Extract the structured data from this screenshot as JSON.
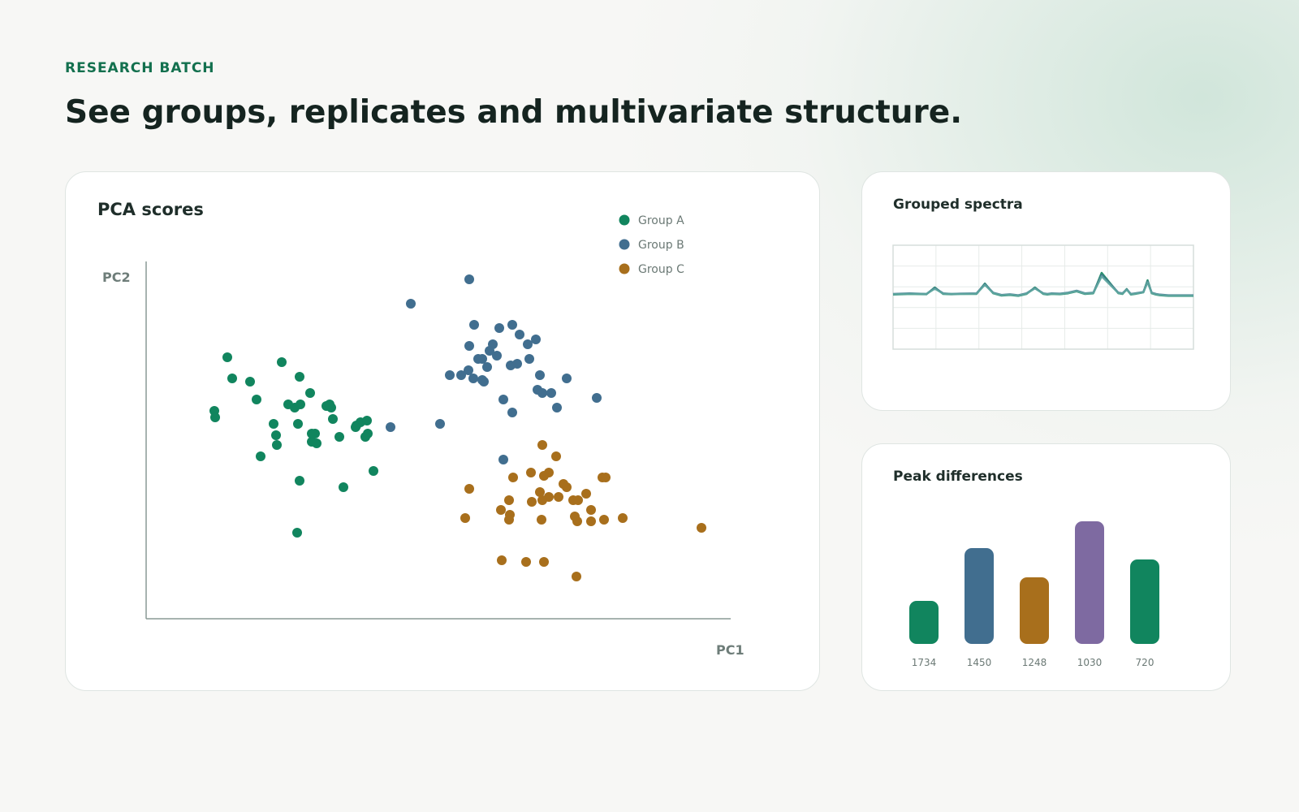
{
  "header": {
    "eyebrow": "RESEARCH BATCH",
    "title": "See groups, replicates and multivariate structure."
  },
  "colors": {
    "accent": "#13704e",
    "groupA": "#11855e",
    "groupB": "#416e8f",
    "groupC": "#a86f1c",
    "groupD": "#7e6aa1"
  },
  "chart_data": [
    {
      "type": "scatter",
      "title": "PCA scores",
      "xlabel": "PC1",
      "ylabel": "PC2",
      "xlim": [
        0,
        720
      ],
      "ylim": [
        0,
        440
      ],
      "legend": "top-right",
      "grid": false,
      "series": [
        {
          "name": "Group A",
          "color": "#11855e",
          "points": [
            [
              100,
              322
            ],
            [
              106,
              296
            ],
            [
              128,
              292
            ],
            [
              167,
              316
            ],
            [
              189,
              298
            ],
            [
              84,
              256
            ],
            [
              85,
              248
            ],
            [
              136,
              270
            ],
            [
              202,
              278
            ],
            [
              175,
              264
            ],
            [
              183,
              260
            ],
            [
              190,
              264
            ],
            [
              222,
              262
            ],
            [
              228,
              260
            ],
            [
              226,
              264
            ],
            [
              230,
              246
            ],
            [
              208,
              228
            ],
            [
              238,
              224
            ],
            [
              187,
              240
            ],
            [
              157,
              240
            ],
            [
              160,
              226
            ],
            [
              161,
              214
            ],
            [
              210,
              216
            ],
            [
              204,
              218
            ],
            [
              204,
              228
            ],
            [
              259,
              238
            ],
            [
              264,
              242
            ],
            [
              272,
              244
            ],
            [
              258,
              236
            ],
            [
              273,
              228
            ],
            [
              270,
              224
            ],
            [
              141,
              200
            ],
            [
              280,
              182
            ],
            [
              189,
              170
            ],
            [
              243,
              162
            ],
            [
              186,
              106
            ]
          ]
        },
        {
          "name": "Group B",
          "color": "#416e8f",
          "points": [
            [
              398,
              418
            ],
            [
              326,
              388
            ],
            [
              404,
              362
            ],
            [
              435,
              358
            ],
            [
              451,
              362
            ],
            [
              460,
              350
            ],
            [
              427,
              338
            ],
            [
              470,
              338
            ],
            [
              480,
              344
            ],
            [
              398,
              336
            ],
            [
              414,
              320
            ],
            [
              423,
              330
            ],
            [
              432,
              324
            ],
            [
              420,
              310
            ],
            [
              409,
              320
            ],
            [
              449,
              312
            ],
            [
              457,
              314
            ],
            [
              472,
              320
            ],
            [
              397,
              306
            ],
            [
              374,
              300
            ],
            [
              388,
              300
            ],
            [
              403,
              296
            ],
            [
              416,
              292
            ],
            [
              485,
              300
            ],
            [
              518,
              296
            ],
            [
              482,
              282
            ],
            [
              488,
              278
            ],
            [
              414,
              294
            ],
            [
              555,
              272
            ],
            [
              440,
              270
            ],
            [
              362,
              240
            ],
            [
              499,
              278
            ],
            [
              451,
              254
            ],
            [
              301,
              236
            ],
            [
              506,
              260
            ],
            [
              440,
              196
            ]
          ]
        },
        {
          "name": "Group C",
          "color": "#a86f1c",
          "points": [
            [
              488,
              214
            ],
            [
              505,
              200
            ],
            [
              496,
              180
            ],
            [
              452,
              174
            ],
            [
              474,
              180
            ],
            [
              490,
              176
            ],
            [
              514,
              166
            ],
            [
              562,
              174
            ],
            [
              566,
              174
            ],
            [
              398,
              160
            ],
            [
              485,
              156
            ],
            [
              496,
              150
            ],
            [
              518,
              162
            ],
            [
              542,
              154
            ],
            [
              508,
              150
            ],
            [
              526,
              146
            ],
            [
              532,
              146
            ],
            [
              488,
              146
            ],
            [
              475,
              144
            ],
            [
              447,
              146
            ],
            [
              437,
              134
            ],
            [
              448,
              128
            ],
            [
              487,
              122
            ],
            [
              548,
              134
            ],
            [
              531,
              120
            ],
            [
              548,
              120
            ],
            [
              528,
              126
            ],
            [
              564,
              122
            ],
            [
              587,
              124
            ],
            [
              393,
              124
            ],
            [
              447,
              122
            ],
            [
              684,
              112
            ],
            [
              438,
              72
            ],
            [
              468,
              70
            ],
            [
              490,
              70
            ],
            [
              530,
              52
            ]
          ]
        }
      ]
    },
    {
      "type": "line",
      "title": "Grouped spectra",
      "xlabel": "",
      "ylabel": "",
      "legend": "none",
      "grid": true,
      "x": [
        0,
        20,
        40,
        50,
        60,
        70,
        80,
        100,
        110,
        120,
        130,
        140,
        150,
        160,
        170,
        180,
        185,
        190,
        200,
        210,
        220,
        230,
        240,
        250,
        270,
        275,
        280,
        285,
        290,
        300,
        305,
        310,
        315,
        320,
        330,
        350,
        360
      ],
      "series": [
        {
          "color": "#11855e",
          "values": [
            0.08,
            0.1,
            0.09,
            0.3,
            0.1,
            0.09,
            0.1,
            0.1,
            0.42,
            0.12,
            0.05,
            0.07,
            0.04,
            0.1,
            0.3,
            0.1,
            0.08,
            0.1,
            0.09,
            0.12,
            0.18,
            0.1,
            0.12,
            0.75,
            0.12,
            0.1,
            0.25,
            0.08,
            0.1,
            0.15,
            0.52,
            0.12,
            0.08,
            0.06,
            0.04,
            0.04,
            0.04
          ]
        },
        {
          "color": "#416e8f",
          "values": [
            0.1,
            0.12,
            0.1,
            0.28,
            0.12,
            0.1,
            0.11,
            0.12,
            0.4,
            0.14,
            0.07,
            0.09,
            0.06,
            0.12,
            0.28,
            0.12,
            0.1,
            0.12,
            0.11,
            0.14,
            0.2,
            0.12,
            0.14,
            0.68,
            0.14,
            0.12,
            0.24,
            0.1,
            0.12,
            0.16,
            0.48,
            0.14,
            0.1,
            0.08,
            0.06,
            0.06,
            0.06
          ]
        },
        {
          "color": "#5fa8a0",
          "values": [
            0.09,
            0.11,
            0.1,
            0.26,
            0.11,
            0.1,
            0.1,
            0.11,
            0.38,
            0.13,
            0.06,
            0.08,
            0.05,
            0.11,
            0.27,
            0.11,
            0.09,
            0.11,
            0.1,
            0.13,
            0.19,
            0.11,
            0.13,
            0.64,
            0.13,
            0.11,
            0.23,
            0.09,
            0.11,
            0.15,
            0.46,
            0.13,
            0.09,
            0.07,
            0.05,
            0.05,
            0.05
          ]
        }
      ]
    },
    {
      "type": "bar",
      "title": "Peak differences",
      "xlabel": "",
      "ylabel": "",
      "legend": "none",
      "grid": false,
      "categories": [
        "1734",
        "1450",
        "1248",
        "1030",
        "720"
      ],
      "values": [
        53,
        118,
        82,
        151,
        104
      ],
      "colors": [
        "#11855e",
        "#416e8f",
        "#a86f1c",
        "#7e6aa1",
        "#11855e"
      ],
      "ylim": [
        0,
        160
      ]
    }
  ]
}
